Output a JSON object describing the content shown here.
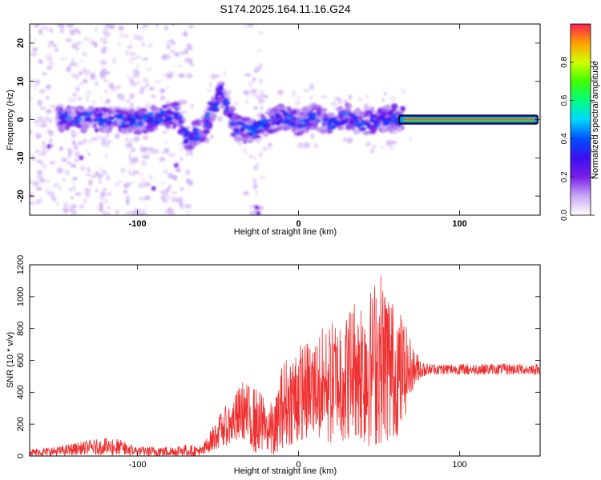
{
  "title": "S174.2025.164.11.16.G24",
  "chart_data": [
    {
      "type": "heatmap",
      "xlabel": "Height of straight line (km)",
      "ylabel": "Frequency (Hz)",
      "xlim": [
        -167,
        150
      ],
      "ylim": [
        -25,
        25
      ],
      "xticks": [
        -100,
        0,
        100
      ],
      "yticks": [
        -20,
        -10,
        0,
        10,
        20
      ],
      "colorbar": {
        "label": "Normalized spectral amplitude",
        "range": [
          0,
          1
        ],
        "ticks": [
          0.0,
          0.2,
          0.4,
          0.6,
          0.8
        ],
        "tick_labels": [
          "0.0",
          "0.2",
          "0.4",
          "0.6",
          "0.8"
        ],
        "colormap": [
          "#ffffff",
          "#c9a8f5",
          "#7a1fe8",
          "#3a10f0",
          "#0050ff",
          "#00d8ff",
          "#00ff80",
          "#40ff00",
          "#d0ff00",
          "#ffa000",
          "#ff2050"
        ]
      },
      "ridge": [
        {
          "x": -145,
          "y": 0.5
        },
        {
          "x": -120,
          "y": 0
        },
        {
          "x": -100,
          "y": -0.5
        },
        {
          "x": -85,
          "y": 0.5
        },
        {
          "x": -75,
          "y": 1.5
        },
        {
          "x": -70,
          "y": -5
        },
        {
          "x": -60,
          "y": -3
        },
        {
          "x": -52,
          "y": 4
        },
        {
          "x": -48,
          "y": 8
        },
        {
          "x": -40,
          "y": -2
        },
        {
          "x": -30,
          "y": -3
        },
        {
          "x": -20,
          "y": -1
        },
        {
          "x": -10,
          "y": 1
        },
        {
          "x": 0,
          "y": -1
        },
        {
          "x": 10,
          "y": 1
        },
        {
          "x": 20,
          "y": -1
        },
        {
          "x": 30,
          "y": 1
        },
        {
          "x": 40,
          "y": -1
        },
        {
          "x": 50,
          "y": 0
        },
        {
          "x": 60,
          "y": 0.5
        },
        {
          "x": 65,
          "y": 0
        },
        {
          "x": 100,
          "y": 0
        },
        {
          "x": 148,
          "y": 0
        }
      ]
    },
    {
      "type": "line",
      "xlabel": "Height of straight line (km)",
      "ylabel": "SNR (10 * v/v)",
      "xlim": [
        -167,
        150
      ],
      "ylim": [
        0,
        1200
      ],
      "xticks": [
        -100,
        0,
        100
      ],
      "yticks": [
        0,
        200,
        400,
        600,
        800,
        1000,
        1200
      ],
      "color": "#f03030",
      "envelope": [
        {
          "x": -167,
          "lo": 0,
          "hi": 45
        },
        {
          "x": -150,
          "lo": 0,
          "hi": 60
        },
        {
          "x": -130,
          "lo": 10,
          "hi": 100
        },
        {
          "x": -115,
          "lo": 0,
          "hi": 120
        },
        {
          "x": -100,
          "lo": 0,
          "hi": 60
        },
        {
          "x": -80,
          "lo": 0,
          "hi": 60
        },
        {
          "x": -70,
          "lo": 0,
          "hi": 75
        },
        {
          "x": -60,
          "lo": 0,
          "hi": 60
        },
        {
          "x": -50,
          "lo": 50,
          "hi": 250
        },
        {
          "x": -40,
          "lo": 80,
          "hi": 380
        },
        {
          "x": -35,
          "lo": 100,
          "hi": 470
        },
        {
          "x": -25,
          "lo": 0,
          "hi": 420
        },
        {
          "x": -15,
          "lo": 0,
          "hi": 320
        },
        {
          "x": -10,
          "lo": 50,
          "hi": 600
        },
        {
          "x": 0,
          "lo": 80,
          "hi": 700
        },
        {
          "x": 10,
          "lo": 100,
          "hi": 760
        },
        {
          "x": 20,
          "lo": 80,
          "hi": 860
        },
        {
          "x": 30,
          "lo": 100,
          "hi": 920
        },
        {
          "x": 35,
          "lo": 130,
          "hi": 1000
        },
        {
          "x": 45,
          "lo": 50,
          "hi": 1050
        },
        {
          "x": 50,
          "lo": 80,
          "hi": 1190
        },
        {
          "x": 60,
          "lo": 100,
          "hi": 980
        },
        {
          "x": 65,
          "lo": 200,
          "hi": 870
        },
        {
          "x": 70,
          "lo": 400,
          "hi": 720
        },
        {
          "x": 75,
          "lo": 480,
          "hi": 620
        },
        {
          "x": 80,
          "lo": 510,
          "hi": 580
        },
        {
          "x": 150,
          "lo": 510,
          "hi": 580
        }
      ]
    }
  ]
}
